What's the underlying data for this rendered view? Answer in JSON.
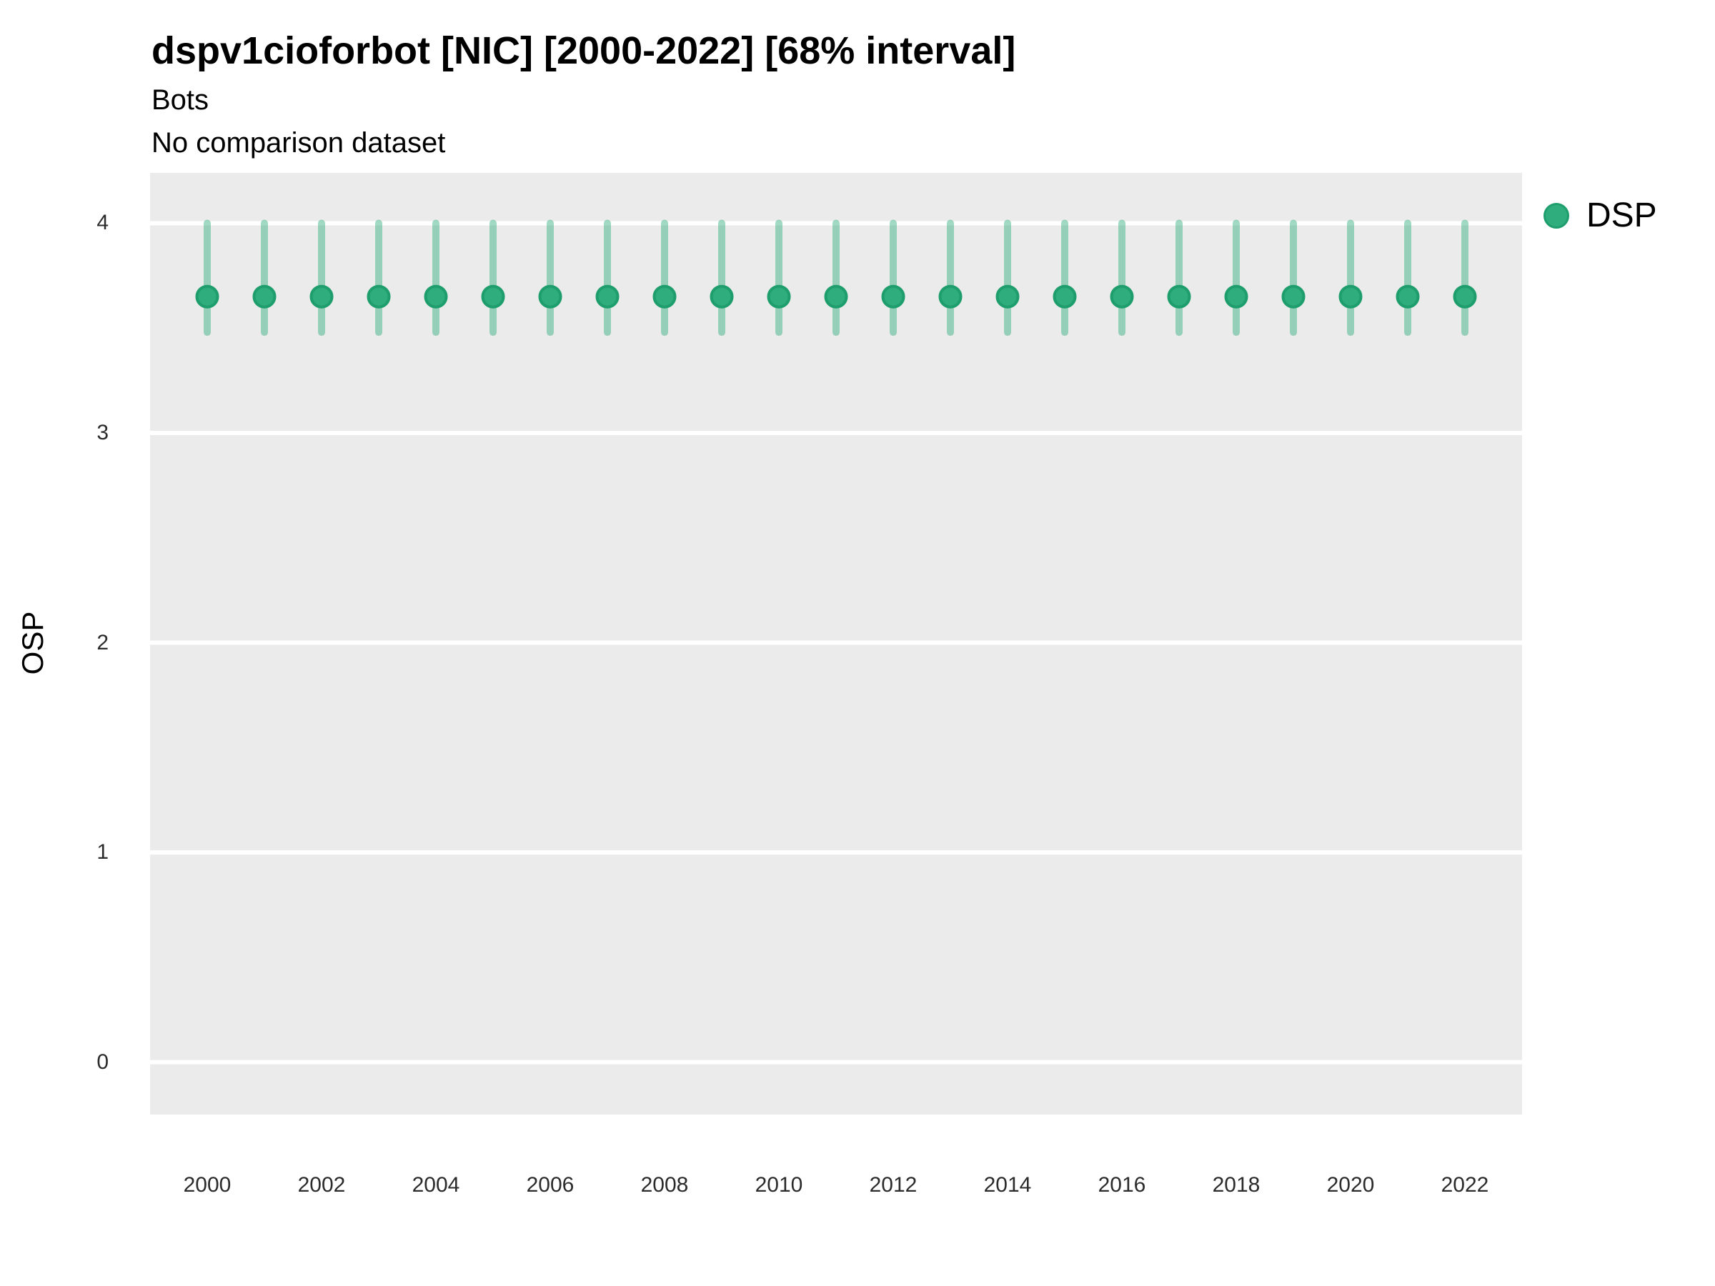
{
  "chart_data": {
    "type": "scatter",
    "title": "dspv1cioforbot [NIC] [2000-2022] [68% interval]",
    "subtitle_lines": [
      "Bots",
      "No comparison dataset"
    ],
    "xlabel": "",
    "ylabel": "OSP",
    "legend_position": "right-top",
    "grid": "major-horizontal-white-on-gray",
    "interval_label": "68% interval",
    "x": [
      2000,
      2001,
      2002,
      2003,
      2004,
      2005,
      2006,
      2007,
      2008,
      2009,
      2010,
      2011,
      2012,
      2013,
      2014,
      2015,
      2016,
      2017,
      2018,
      2019,
      2020,
      2021,
      2022
    ],
    "series": [
      {
        "name": "DSP",
        "mean": [
          3.65,
          3.65,
          3.65,
          3.65,
          3.65,
          3.65,
          3.65,
          3.65,
          3.65,
          3.65,
          3.65,
          3.65,
          3.65,
          3.65,
          3.65,
          3.65,
          3.65,
          3.65,
          3.65,
          3.65,
          3.65,
          3.65,
          3.65
        ],
        "lo": [
          3.48,
          3.48,
          3.48,
          3.48,
          3.48,
          3.48,
          3.48,
          3.48,
          3.48,
          3.48,
          3.48,
          3.48,
          3.48,
          3.48,
          3.48,
          3.48,
          3.48,
          3.48,
          3.48,
          3.48,
          3.48,
          3.48,
          3.48
        ],
        "hi": [
          4.0,
          4.0,
          4.0,
          4.0,
          4.0,
          4.0,
          4.0,
          4.0,
          4.0,
          4.0,
          4.0,
          4.0,
          4.0,
          4.0,
          4.0,
          4.0,
          4.0,
          4.0,
          4.0,
          4.0,
          4.0,
          4.0,
          4.0
        ]
      }
    ],
    "xlim": [
      1999,
      2023
    ],
    "ylim": [
      -0.25,
      4.24
    ],
    "xticks": [
      2000,
      2002,
      2004,
      2006,
      2008,
      2010,
      2012,
      2014,
      2016,
      2018,
      2020,
      2022
    ],
    "yticks": [
      0,
      1,
      2,
      3,
      4
    ]
  },
  "style": {
    "panel_bg": "#EBEBEB",
    "gridline_color": "#FFFFFF",
    "point_fill": "#2FAD7C",
    "point_stroke": "#1E9E6C",
    "errorbar_color": "rgba(47,173,124,0.45)",
    "tick_text_color": "#2b2b2b",
    "text_color": "#000000"
  }
}
